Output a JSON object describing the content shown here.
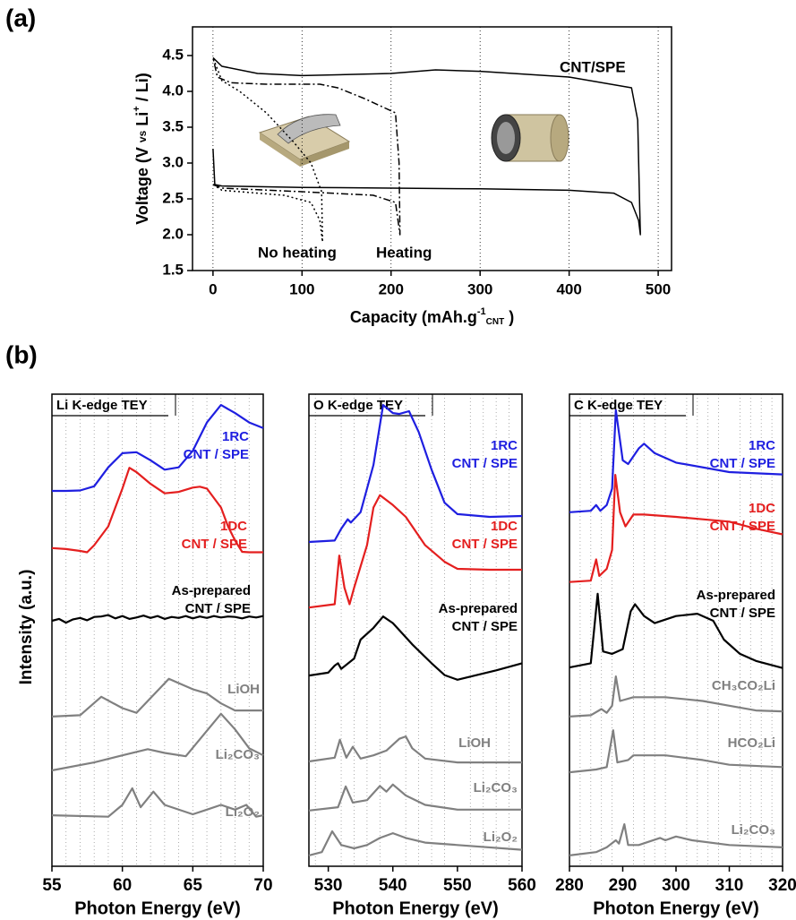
{
  "chart_data": [
    {
      "type": "line",
      "panel": "(a)",
      "xlabel": [
        "Capacity (mAh.g",
        "-1",
        "CNT",
        " )"
      ],
      "ylabel": [
        "Voltage (V ",
        "vs",
        " Li",
        "+",
        " / Li)"
      ],
      "xlim": [
        -23,
        515
      ],
      "ylim": [
        1.5,
        4.9
      ],
      "xticks": [
        0,
        100,
        200,
        300,
        400,
        500
      ],
      "yticks": [
        1.5,
        {
          "value": 2,
          "label": "2.0"
        },
        2.5,
        {
          "value": 3,
          "label": "3.0"
        },
        3.5,
        {
          "value": 4,
          "label": "4.0"
        },
        4.5
      ],
      "grid": true,
      "series": [
        {
          "name": "CNT/SPE",
          "color": "#000000",
          "style": "solid",
          "x": [
            0,
            2,
            10,
            100,
            200,
            300,
            400,
            450,
            470,
            478,
            480,
            479,
            477,
            470,
            400,
            300,
            250,
            200,
            100,
            50,
            10,
            0
          ],
          "values": [
            3.2,
            2.7,
            2.68,
            2.66,
            2.65,
            2.64,
            2.62,
            2.58,
            2.45,
            2.2,
            2.0,
            2.5,
            3.6,
            4.05,
            4.2,
            4.28,
            4.3,
            4.25,
            4.22,
            4.25,
            4.35,
            4.47
          ]
        },
        {
          "name": "Heating",
          "color": "#000000",
          "style": "dashdot",
          "x": [
            0,
            10,
            100,
            180,
            205,
            210,
            209,
            205,
            170,
            140,
            120,
            60,
            20,
            5,
            0
          ],
          "values": [
            2.7,
            2.65,
            2.6,
            2.55,
            2.45,
            2.0,
            3.0,
            3.7,
            3.9,
            4.05,
            4.1,
            4.1,
            4.12,
            4.2,
            4.47
          ]
        },
        {
          "name": "No heating",
          "color": "#000000",
          "style": "dotted",
          "x": [
            0,
            10,
            80,
            110,
            120,
            123,
            122,
            110,
            90,
            60,
            30,
            10,
            0
          ],
          "values": [
            2.7,
            2.62,
            2.55,
            2.45,
            2.2,
            1.9,
            2.6,
            3.0,
            3.3,
            3.7,
            4.0,
            4.15,
            4.47
          ]
        }
      ]
    },
    {
      "type": "line",
      "panel": "(b)",
      "title": "Li K-edge TEY",
      "xlabel": "Photon Energy (eV)",
      "ylabel": "Intensity (a.u.)",
      "xlim": [
        55,
        70
      ],
      "ylim": [
        0,
        100
      ],
      "xticks": [
        55,
        60,
        65,
        70
      ],
      "xgrid": [
        56,
        57,
        58,
        59,
        60,
        61,
        62,
        63,
        64,
        65,
        66,
        67,
        68,
        69
      ],
      "series": [
        {
          "name": [
            "1RC",
            "CNT / SPE"
          ],
          "color": "#1f1fe0",
          "x": [
            55,
            56,
            57,
            58,
            59,
            60,
            61,
            62,
            63,
            64,
            65,
            66,
            67,
            68,
            69,
            70
          ],
          "values": [
            79.5,
            79.5,
            79.6,
            80.5,
            84.5,
            87.5,
            87.7,
            86,
            84,
            84.5,
            88,
            94,
            97.7,
            96,
            94,
            92.8
          ]
        },
        {
          "name": [
            "1DC",
            "CNT / SPE"
          ],
          "color": "#e41f1f",
          "x": [
            55,
            56,
            57,
            57.5,
            58,
            59,
            60,
            60.5,
            61,
            62,
            63,
            64,
            65,
            65.5,
            66,
            67,
            67.5,
            68,
            68.5,
            69,
            70
          ],
          "values": [
            67.4,
            67.2,
            66.8,
            66.5,
            68,
            72,
            80,
            84.4,
            83.5,
            81,
            79,
            79.3,
            80.2,
            80.4,
            80,
            76,
            72,
            69,
            66.6,
            66.5,
            66.5
          ]
        },
        {
          "name": [
            "As-prepared",
            "CNT / SPE"
          ],
          "color": "#000000",
          "x": [
            55,
            55.5,
            56,
            56.5,
            57,
            57.5,
            58,
            58.5,
            59,
            59.5,
            60,
            60.5,
            61,
            61.5,
            62,
            62.5,
            63,
            63.5,
            64,
            64.5,
            65,
            65.5,
            66,
            66.5,
            67,
            67.5,
            68,
            68.5,
            69,
            69.5,
            70
          ],
          "values": [
            52,
            52.4,
            51.6,
            52.3,
            52.6,
            52.1,
            52.8,
            52.9,
            53.2,
            52.5,
            53,
            52.4,
            52.7,
            53.1,
            52.6,
            53,
            52.4,
            52.8,
            52.6,
            53,
            52.5,
            52.9,
            52.6,
            53,
            52.7,
            52.9,
            52.8,
            52.5,
            52.9,
            52.7,
            53
          ]
        },
        {
          "name": [
            "LiOH"
          ],
          "color": "#808080",
          "x": [
            55,
            57,
            58.5,
            60,
            61,
            63.3,
            65,
            66,
            67,
            68,
            70
          ],
          "values": [
            31.7,
            32,
            35.9,
            33.5,
            32.5,
            39.7,
            37.5,
            36.6,
            34.5,
            33,
            33
          ]
        },
        {
          "name": [
            "Li₂CO₃"
          ],
          "color": "#808080",
          "x": [
            55,
            58,
            60,
            61.8,
            63,
            64.5,
            67,
            68,
            69,
            70
          ],
          "values": [
            20.3,
            22,
            23.5,
            24.8,
            24,
            23.3,
            32.3,
            29,
            25,
            23.5
          ]
        },
        {
          "name": [
            "Li₂O₂"
          ],
          "color": "#808080",
          "x": [
            55,
            59,
            60,
            60.7,
            61.3,
            62.2,
            63,
            65,
            66,
            67,
            68,
            68.8,
            69.5,
            70
          ],
          "values": [
            10.8,
            10.5,
            13,
            16.5,
            12.5,
            15.8,
            13,
            11,
            12,
            13,
            12,
            13,
            10.5,
            10.8
          ]
        }
      ]
    },
    {
      "type": "line",
      "title": "O K-edge TEY",
      "xlabel": "Photon Energy (eV)",
      "xlim": [
        527,
        560
      ],
      "ylim": [
        0,
        100
      ],
      "xticks": [
        530,
        540,
        550,
        560
      ],
      "xgrid": [
        528,
        532,
        534,
        536,
        538,
        542,
        544,
        546,
        548,
        552,
        554,
        556,
        558
      ],
      "series": [
        {
          "name": [
            "1RC",
            "CNT / SPE"
          ],
          "color": "#1f1fe0",
          "x": [
            527,
            531,
            532,
            533,
            533.5,
            535,
            537,
            538.5,
            540,
            541,
            542.5,
            544,
            546,
            548,
            550,
            555,
            560
          ],
          "values": [
            68.7,
            69,
            71.5,
            73.5,
            72.8,
            75,
            85,
            97.7,
            96,
            95.8,
            96.4,
            92,
            84,
            77,
            74.6,
            74,
            74.2
          ]
        },
        {
          "name": [
            "1DC",
            "CNT / SPE"
          ],
          "color": "#e41f1f",
          "x": [
            527,
            531,
            531.7,
            532.5,
            533.3,
            534,
            536,
            537,
            538,
            540,
            542,
            545,
            548,
            550,
            555,
            560
          ],
          "values": [
            54.8,
            55.5,
            65.8,
            59,
            55.5,
            59,
            68,
            76,
            78.6,
            76.5,
            74,
            68,
            64.5,
            63,
            62.8,
            62.8
          ]
        },
        {
          "name": [
            "As-prepared",
            "CNT / SPE"
          ],
          "color": "#000000",
          "x": [
            527,
            530,
            531,
            531.5,
            532,
            534,
            535,
            537,
            538.5,
            540,
            543,
            546,
            548,
            550,
            553,
            556,
            560
          ],
          "values": [
            40.4,
            41,
            42.5,
            43,
            41.8,
            44,
            48,
            50.5,
            52.9,
            51.5,
            47,
            43,
            40.5,
            39.5,
            40.5,
            41.5,
            43
          ]
        },
        {
          "name": [
            "LiOH"
          ],
          "color": "#808080",
          "x": [
            527,
            531,
            531.8,
            532.8,
            533.8,
            535,
            537,
            539,
            541,
            542,
            543,
            545,
            550,
            560
          ],
          "values": [
            22.2,
            23,
            26.8,
            23,
            25.3,
            22.8,
            23.5,
            24.5,
            27,
            27.5,
            25,
            22.8,
            22,
            22
          ]
        },
        {
          "name": [
            "Li₂CO₃"
          ],
          "color": "#808080",
          "x": [
            527,
            531.5,
            532.7,
            533.8,
            536,
            538,
            539,
            540,
            542,
            545,
            550,
            560
          ],
          "values": [
            11.8,
            12.5,
            16.9,
            13.5,
            14,
            17,
            15.8,
            17.3,
            15,
            13,
            12,
            12
          ]
        },
        {
          "name": [
            "Li₂O₂"
          ],
          "color": "#808080",
          "x": [
            527,
            529,
            530.6,
            532,
            534,
            536,
            538,
            540,
            542,
            545,
            550,
            560
          ],
          "values": [
            2.3,
            3,
            7.4,
            4.5,
            3.8,
            4.5,
            6,
            7,
            6,
            5,
            4.5,
            3.5
          ]
        }
      ]
    },
    {
      "type": "line",
      "title": "C K-edge TEY",
      "xlabel": "Photon Energy (eV)",
      "xlim": [
        280,
        320
      ],
      "ylim": [
        0,
        100
      ],
      "xticks": [
        280,
        290,
        300,
        310,
        320
      ],
      "xgrid": [
        282,
        284,
        286,
        288,
        292,
        294,
        296,
        298,
        302,
        304,
        306,
        308,
        312,
        314,
        316,
        318
      ],
      "series": [
        {
          "name": [
            "1RC",
            "CNT / SPE"
          ],
          "color": "#1f1fe0",
          "x": [
            280,
            284,
            285,
            285.8,
            287,
            288,
            288.7,
            290,
            291,
            293,
            294,
            296,
            300,
            310,
            320
          ],
          "values": [
            75,
            75.3,
            76.5,
            75.3,
            76.5,
            80,
            96.6,
            86,
            85.2,
            88.5,
            89.5,
            87.5,
            85.5,
            83.5,
            83
          ]
        },
        {
          "name": [
            "1DC",
            "CNT / SPE"
          ],
          "color": "#e41f1f",
          "x": [
            280,
            284,
            285,
            285.6,
            287,
            288,
            288.6,
            289.5,
            290.5,
            292,
            294,
            300,
            305,
            310,
            315,
            320
          ],
          "values": [
            60.2,
            60.5,
            65,
            61.5,
            63,
            67,
            82.9,
            75,
            72,
            74.5,
            74.5,
            74,
            73.5,
            73,
            71.5,
            70.3
          ]
        },
        {
          "name": [
            "As-prepared",
            "CNT / SPE"
          ],
          "color": "#000000",
          "x": [
            280,
            284,
            285.3,
            286.3,
            288,
            290,
            291.5,
            292.3,
            294,
            296,
            300,
            304,
            307,
            309,
            312,
            315,
            320
          ],
          "values": [
            42.1,
            43,
            57.7,
            45.5,
            45,
            46,
            54,
            55.5,
            53,
            51.5,
            53,
            53.5,
            52,
            48,
            45,
            43.5,
            42
          ]
        },
        {
          "name": [
            "CH₃CO₂Li"
          ],
          "color": "#808080",
          "x": [
            280,
            284,
            286,
            287,
            288,
            288.7,
            289.5,
            292,
            298,
            305,
            310,
            315,
            320
          ],
          "values": [
            31.7,
            32,
            33.3,
            32.5,
            34,
            40.2,
            35,
            35.8,
            35.8,
            35,
            34,
            33,
            32.8
          ]
        },
        {
          "name": [
            "HCO₂Li"
          ],
          "color": "#808080",
          "x": [
            280,
            285,
            287,
            288.2,
            289,
            291,
            292,
            298,
            305,
            310,
            320
          ],
          "values": [
            19.9,
            20.5,
            21,
            28.8,
            22,
            22.5,
            23.5,
            23.5,
            22.5,
            21.5,
            21
          ]
        },
        {
          "name": [
            "Li₂CO₃"
          ],
          "color": "#808080",
          "x": [
            280,
            285,
            287,
            288.7,
            289.3,
            290.3,
            291,
            293,
            297,
            298,
            300,
            303,
            310,
            320
          ],
          "values": [
            2.3,
            3,
            4,
            5.5,
            4.8,
            8.9,
            4.5,
            4.5,
            6,
            5.5,
            6.3,
            5.5,
            4.5,
            4
          ]
        }
      ]
    }
  ]
}
